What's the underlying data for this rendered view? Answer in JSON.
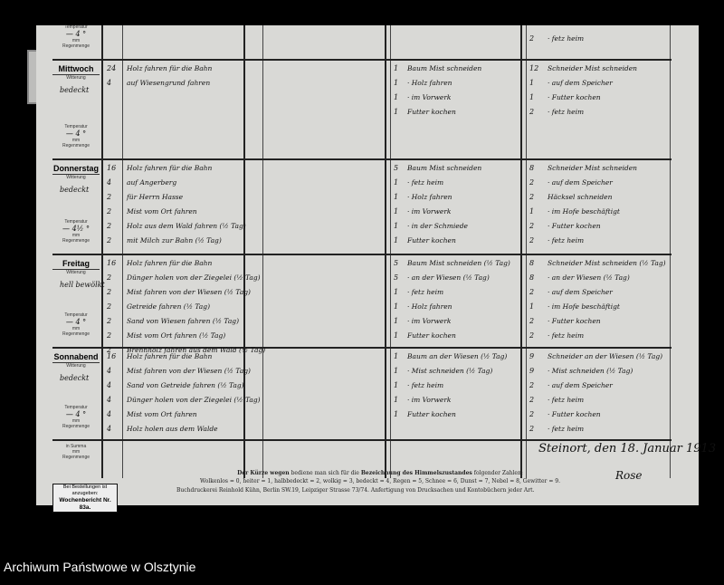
{
  "days": [
    {
      "name": "",
      "weather": "",
      "temperature": "— 4 °",
      "rows": [],
      "right_rows": [
        {
          "num": "2",
          "text": "· fetz heim"
        }
      ],
      "labels": {
        "temp": "Temperatur",
        "rain": "mm Regenmenge"
      }
    },
    {
      "name": "Mittwoch",
      "weather": "bedeckt",
      "temperature": "— 4 °",
      "rows": [
        {
          "num": "24",
          "text": "Holz fahren für die Bahn"
        },
        {
          "num": "4",
          "text": "auf Wiesengrund fahren"
        }
      ],
      "mid_rows": [
        {
          "num": "1",
          "text": "Baum Mist schneiden"
        },
        {
          "num": "1",
          "text": "· Holz fahren"
        },
        {
          "num": "1",
          "text": "· im Vorwerk"
        },
        {
          "num": "1",
          "text": "Futter kochen"
        }
      ],
      "right_rows": [
        {
          "num": "12",
          "text": "Schneider Mist schneiden"
        },
        {
          "num": "1",
          "text": "· auf dem Speicher"
        },
        {
          "num": "1",
          "text": "· Futter kochen"
        },
        {
          "num": "2",
          "text": "· fetz heim"
        }
      ]
    },
    {
      "name": "Donnerstag",
      "weather": "bedeckt",
      "temperature": "— 4½ °",
      "rows": [
        {
          "num": "16",
          "text": "Holz fahren für die Bahn"
        },
        {
          "num": "4",
          "text": "auf Angerberg"
        },
        {
          "num": "2",
          "text": "für Herrn Hasse"
        },
        {
          "num": "2",
          "text": "Mist vom Ort fahren"
        },
        {
          "num": "2",
          "text": "Holz aus dem Wald fahren (½ Tag)"
        },
        {
          "num": "2",
          "text": "mit Milch zur Bahn (½ Tag)"
        }
      ],
      "mid_rows": [
        {
          "num": "5",
          "text": "Baum Mist schneiden"
        },
        {
          "num": "1",
          "text": "· fetz heim"
        },
        {
          "num": "1",
          "text": "· Holz fahren"
        },
        {
          "num": "1",
          "text": "· im Vorwerk"
        },
        {
          "num": "1",
          "text": "· in der Schmiede"
        },
        {
          "num": "1",
          "text": "Futter kochen"
        }
      ],
      "right_rows": [
        {
          "num": "8",
          "text": "Schneider Mist schneiden"
        },
        {
          "num": "2",
          "text": "· auf dem Speicher"
        },
        {
          "num": "2",
          "text": "Häcksel schneiden"
        },
        {
          "num": "1",
          "text": "· im Hofe beschäftigt"
        },
        {
          "num": "2",
          "text": "· Futter kochen"
        },
        {
          "num": "2",
          "text": "· fetz heim"
        }
      ]
    },
    {
      "name": "Freitag",
      "weather": "hell bewölkt",
      "temperature": "— 4 °",
      "rows": [
        {
          "num": "16",
          "text": "Holz fahren für die Bahn"
        },
        {
          "num": "2",
          "text": "Dünger holen von der Ziegelei (½ Tag)"
        },
        {
          "num": "2",
          "text": "Mist fahren von der Wiesen (½ Tag)"
        },
        {
          "num": "2",
          "text": "Getreide fahren (½ Tag)"
        },
        {
          "num": "2",
          "text": "Sand von Wiesen fahren (½ Tag)"
        },
        {
          "num": "2",
          "text": "Mist vom Ort fahren (½ Tag)"
        },
        {
          "num": "2",
          "text": "Brennholz fahren aus dem Wald (½ Tag)"
        }
      ],
      "mid_rows": [
        {
          "num": "5",
          "text": "Baum Mist schneiden (½ Tag)"
        },
        {
          "num": "5",
          "text": "· an der Wiesen (½ Tag)"
        },
        {
          "num": "1",
          "text": "· fetz heim"
        },
        {
          "num": "1",
          "text": "· Holz fahren"
        },
        {
          "num": "1",
          "text": "· im Vorwerk"
        },
        {
          "num": "1",
          "text": "Futter kochen"
        }
      ],
      "right_rows": [
        {
          "num": "8",
          "text": "Schneider Mist schneiden (½ Tag)"
        },
        {
          "num": "8",
          "text": "· an der Wiesen (½ Tag)"
        },
        {
          "num": "2",
          "text": "· auf dem Speicher"
        },
        {
          "num": "1",
          "text": "· im Hofe beschäftigt"
        },
        {
          "num": "2",
          "text": "· Futter kochen"
        },
        {
          "num": "2",
          "text": "· fetz heim"
        }
      ]
    },
    {
      "name": "Sonnabend",
      "weather": "bedeckt",
      "temperature": "— 4 °",
      "rows": [
        {
          "num": "16",
          "text": "Holz fahren für die Bahn"
        },
        {
          "num": "4",
          "text": "Mist fahren von der Wiesen (½ Tag)"
        },
        {
          "num": "4",
          "text": "Sand von Getreide fahren (½ Tag)"
        },
        {
          "num": "4",
          "text": "Dünger holen von der Ziegelei (½ Tag)"
        },
        {
          "num": "4",
          "text": "Mist vom Ort fahren"
        },
        {
          "num": "4",
          "text": "Holz holen aus dem Walde"
        }
      ],
      "mid_rows": [
        {
          "num": "1",
          "text": "Baum an der Wiesen (½ Tag)"
        },
        {
          "num": "1",
          "text": "· Mist schneiden (½ Tag)"
        },
        {
          "num": "1",
          "text": "· fetz heim"
        },
        {
          "num": "1",
          "text": "· im Vorwerk"
        },
        {
          "num": "1",
          "text": "Futter kochen"
        }
      ],
      "right_rows": [
        {
          "num": "9",
          "text": "Schneider an der Wiesen (½ Tag)"
        },
        {
          "num": "9",
          "text": "· Mist schneiden (½ Tag)"
        },
        {
          "num": "2",
          "text": "· auf dem Speicher"
        },
        {
          "num": "2",
          "text": "· fetz heim"
        },
        {
          "num": "2",
          "text": "· Futter kochen"
        },
        {
          "num": "2",
          "text": "· fetz heim"
        }
      ]
    }
  ],
  "labels": {
    "weather": "Witterung",
    "temp": "Temperatur",
    "rain_unit": "mm",
    "rain": "Regenmenge",
    "total": "in Summa"
  },
  "legend": {
    "line1_a": "Der Kürze wegen",
    "line1_b": " bediene man sich für die ",
    "line1_c": "Bezeichnung des Himmelszustandes",
    "line1_d": " folgender Zahlen:",
    "line2": "Wolkenlos = 0, heiter = 1, halbbedeckt = 2, wolkig = 3, bedeckt = 4, Regen = 5, Schnee = 6, Dunst = 7, Nebel = 8, Gewitter = 9."
  },
  "printer": "Buchdruckerei Reinhold Kühn, Berlin SW.19, Leipziger Strasse 73/74.   Anfertigung von Drucksachen und Kontobüchern jeder Art.",
  "order_box": {
    "line1": "Bei Bestellungen ist anzugeben:",
    "line2": "Wochenbericht Nr. 83a."
  },
  "signature": {
    "place_date": "Steinort, den 18. Januar 1913",
    "name": "Rose"
  },
  "archive": "Archiwum Państwowe w Olsztynie"
}
